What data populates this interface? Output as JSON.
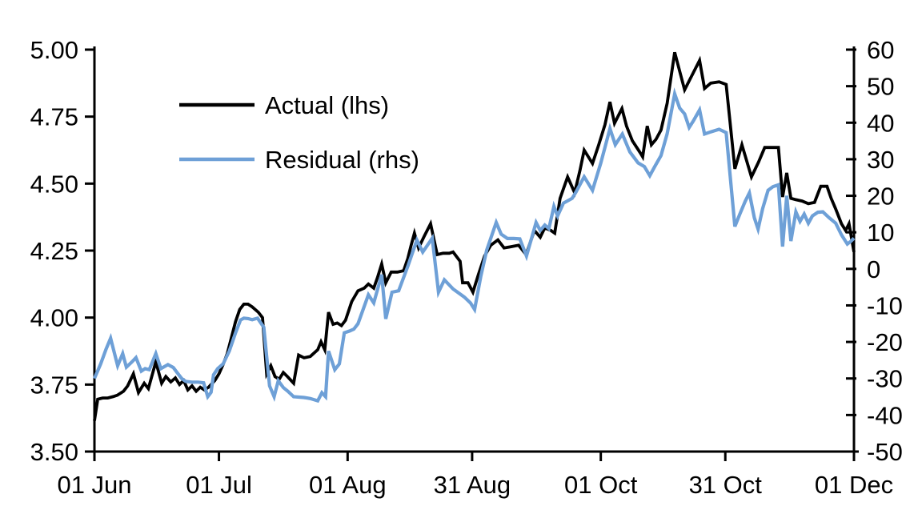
{
  "chart_data": {
    "type": "line",
    "title": "",
    "x_unit": "days since 01 Jun",
    "grid": "off",
    "legend_position": "upper-left-inside",
    "x_ticks": [
      {
        "day": 0,
        "label": "01 Jun"
      },
      {
        "day": 30,
        "label": "01 Jul"
      },
      {
        "day": 61,
        "label": "01 Aug"
      },
      {
        "day": 91,
        "label": "31 Aug"
      },
      {
        "day": 122,
        "label": "01 Oct"
      },
      {
        "day": 152,
        "label": "31 Oct"
      },
      {
        "day": 183,
        "label": "01 Dec"
      }
    ],
    "left_axis": {
      "min": 3.5,
      "max": 5.0,
      "tick_step": 0.25,
      "tick_labels": [
        "5.00",
        "4.75",
        "4.50",
        "4.25",
        "4.00",
        "3.75",
        "3.50"
      ]
    },
    "right_axis": {
      "min": -50,
      "max": 60,
      "tick_step": 10,
      "tick_labels": [
        "60",
        "50",
        "40",
        "30",
        "20",
        "10",
        "0",
        "-10",
        "-20",
        "-30",
        "-40",
        "-50"
      ]
    },
    "series": [
      {
        "name": "Actual (lhs)",
        "axis": "left",
        "color": "#000000",
        "stroke_width": 3.8,
        "points": [
          [
            0,
            3.615
          ],
          [
            0.8,
            3.695
          ],
          [
            2,
            3.7
          ],
          [
            3.2,
            3.7
          ],
          [
            4.5,
            3.705
          ],
          [
            5.5,
            3.71
          ],
          [
            7,
            3.725
          ],
          [
            8,
            3.745
          ],
          [
            9.4,
            3.79
          ],
          [
            10.6,
            3.72
          ],
          [
            12,
            3.755
          ],
          [
            13,
            3.735
          ],
          [
            14.8,
            3.835
          ],
          [
            16.2,
            3.755
          ],
          [
            17.2,
            3.78
          ],
          [
            18.4,
            3.76
          ],
          [
            19.5,
            3.775
          ],
          [
            20.5,
            3.75
          ],
          [
            21.5,
            3.765
          ],
          [
            22.5,
            3.73
          ],
          [
            23.5,
            3.745
          ],
          [
            24.5,
            3.725
          ],
          [
            25.5,
            3.74
          ],
          [
            26.5,
            3.73
          ],
          [
            27.5,
            3.74
          ],
          [
            29,
            3.765
          ],
          [
            30,
            3.79
          ],
          [
            31,
            3.825
          ],
          [
            32,
            3.865
          ],
          [
            33,
            3.925
          ],
          [
            34,
            3.985
          ],
          [
            35,
            4.03
          ],
          [
            36,
            4.05
          ],
          [
            37,
            4.05
          ],
          [
            38,
            4.04
          ],
          [
            39.5,
            4.02
          ],
          [
            40.5,
            4.0
          ],
          [
            41.5,
            3.79
          ],
          [
            42.5,
            3.82
          ],
          [
            43.5,
            3.78
          ],
          [
            44.5,
            3.77
          ],
          [
            45.5,
            3.795
          ],
          [
            46.5,
            3.78
          ],
          [
            48,
            3.755
          ],
          [
            49.2,
            3.86
          ],
          [
            50.5,
            3.85
          ],
          [
            52,
            3.855
          ],
          [
            53.8,
            3.88
          ],
          [
            54.6,
            3.91
          ],
          [
            55.5,
            3.88
          ],
          [
            56.4,
            4.02
          ],
          [
            57.5,
            3.975
          ],
          [
            58.5,
            3.98
          ],
          [
            59.5,
            3.97
          ],
          [
            60.5,
            3.99
          ],
          [
            62,
            4.06
          ],
          [
            63.5,
            4.1
          ],
          [
            65,
            4.11
          ],
          [
            66,
            4.125
          ],
          [
            67.3,
            4.11
          ],
          [
            68.2,
            4.15
          ],
          [
            69.2,
            4.2
          ],
          [
            70.2,
            4.13
          ],
          [
            71.5,
            4.17
          ],
          [
            73,
            4.17
          ],
          [
            74.5,
            4.175
          ],
          [
            75.5,
            4.22
          ],
          [
            76.3,
            4.27
          ],
          [
            77.1,
            4.315
          ],
          [
            78.1,
            4.26
          ],
          [
            79.5,
            4.305
          ],
          [
            81,
            4.35
          ],
          [
            82.6,
            4.235
          ],
          [
            84,
            4.24
          ],
          [
            85.5,
            4.24
          ],
          [
            86.4,
            4.245
          ],
          [
            88.1,
            4.21
          ],
          [
            88.7,
            4.13
          ],
          [
            90,
            4.13
          ],
          [
            91.2,
            4.095
          ],
          [
            92.5,
            4.16
          ],
          [
            94,
            4.23
          ],
          [
            95.5,
            4.27
          ],
          [
            97.2,
            4.29
          ],
          [
            98.7,
            4.26
          ],
          [
            100.5,
            4.265
          ],
          [
            102.2,
            4.27
          ],
          [
            104,
            4.235
          ],
          [
            106,
            4.325
          ],
          [
            107.4,
            4.3
          ],
          [
            108.5,
            4.335
          ],
          [
            110,
            4.325
          ],
          [
            110.9,
            4.315
          ],
          [
            112.2,
            4.445
          ],
          [
            114,
            4.525
          ],
          [
            115.7,
            4.466
          ],
          [
            117,
            4.55
          ],
          [
            118,
            4.625
          ],
          [
            120,
            4.575
          ],
          [
            121.5,
            4.645
          ],
          [
            123,
            4.72
          ],
          [
            124.2,
            4.805
          ],
          [
            125.3,
            4.725
          ],
          [
            127.1,
            4.78
          ],
          [
            128.2,
            4.715
          ],
          [
            129.6,
            4.66
          ],
          [
            131.5,
            4.615
          ],
          [
            132.1,
            4.6
          ],
          [
            133.2,
            4.715
          ],
          [
            134.2,
            4.645
          ],
          [
            135.3,
            4.665
          ],
          [
            136.5,
            4.7
          ],
          [
            138,
            4.8
          ],
          [
            139.8,
            4.99
          ],
          [
            141,
            4.92
          ],
          [
            142.2,
            4.85
          ],
          [
            143.5,
            4.89
          ],
          [
            145.8,
            4.96
          ],
          [
            147,
            4.855
          ],
          [
            148.5,
            4.875
          ],
          [
            150.5,
            4.88
          ],
          [
            152.2,
            4.87
          ],
          [
            153.2,
            4.72
          ],
          [
            154.3,
            4.555
          ],
          [
            156,
            4.645
          ],
          [
            158.3,
            4.525
          ],
          [
            160,
            4.58
          ],
          [
            161.5,
            4.635
          ],
          [
            163,
            4.635
          ],
          [
            164.8,
            4.635
          ],
          [
            165.8,
            4.45
          ],
          [
            166.8,
            4.54
          ],
          [
            167.8,
            4.445
          ],
          [
            169,
            4.44
          ],
          [
            170.5,
            4.435
          ],
          [
            172,
            4.425
          ],
          [
            173.5,
            4.43
          ],
          [
            175,
            4.49
          ],
          [
            176.5,
            4.49
          ],
          [
            177.5,
            4.445
          ],
          [
            178.6,
            4.405
          ],
          [
            180,
            4.35
          ],
          [
            181,
            4.325
          ],
          [
            181.8,
            4.35
          ],
          [
            183,
            4.245
          ]
        ]
      },
      {
        "name": "Residual (rhs)",
        "axis": "right",
        "color": "#6ea0d7",
        "stroke_width": 4.2,
        "points": [
          [
            0,
            -30
          ],
          [
            1.5,
            -26
          ],
          [
            2.8,
            -22
          ],
          [
            3.9,
            -19
          ],
          [
            5.6,
            -26.5
          ],
          [
            6.8,
            -23.2
          ],
          [
            7.7,
            -26.9
          ],
          [
            9,
            -25.5
          ],
          [
            10,
            -24.3
          ],
          [
            11.3,
            -28
          ],
          [
            12.2,
            -27.3
          ],
          [
            13.2,
            -27.6
          ],
          [
            14.8,
            -23.2
          ],
          [
            16,
            -27.3
          ],
          [
            17.7,
            -26.2
          ],
          [
            19,
            -27
          ],
          [
            20,
            -28.5
          ],
          [
            21,
            -30
          ],
          [
            22,
            -30.8
          ],
          [
            23.5,
            -31
          ],
          [
            25,
            -31
          ],
          [
            26.3,
            -31.2
          ],
          [
            27.3,
            -35
          ],
          [
            28.1,
            -33.8
          ],
          [
            28.7,
            -29
          ],
          [
            29.7,
            -27.3
          ],
          [
            31,
            -26
          ],
          [
            32.5,
            -22.5
          ],
          [
            34,
            -17.5
          ],
          [
            35.2,
            -14
          ],
          [
            36,
            -13.5
          ],
          [
            37,
            -13.6
          ],
          [
            38,
            -13.9
          ],
          [
            39.3,
            -13.5
          ],
          [
            40.8,
            -16
          ],
          [
            41.5,
            -24
          ],
          [
            42.2,
            -32
          ],
          [
            43.3,
            -35
          ],
          [
            44.3,
            -30.6
          ],
          [
            45.5,
            -32.5
          ],
          [
            46.6,
            -33.5
          ],
          [
            48,
            -35
          ],
          [
            50.5,
            -35.2
          ],
          [
            52,
            -35.5
          ],
          [
            53.8,
            -36.1
          ],
          [
            54.8,
            -33.9
          ],
          [
            55.7,
            -35
          ],
          [
            56.4,
            -22.5
          ],
          [
            57.9,
            -27.6
          ],
          [
            59,
            -26
          ],
          [
            60.2,
            -17.5
          ],
          [
            61.5,
            -17
          ],
          [
            62.5,
            -16.5
          ],
          [
            63.5,
            -15
          ],
          [
            66,
            -7.1
          ],
          [
            67.3,
            -9.3
          ],
          [
            69.2,
            -1.6
          ],
          [
            70.2,
            -13.7
          ],
          [
            71.7,
            -6.4
          ],
          [
            73.3,
            -6
          ],
          [
            75.6,
            1
          ],
          [
            77.7,
            7.9
          ],
          [
            79.1,
            4.6
          ],
          [
            81.4,
            8.4
          ],
          [
            82.9,
            -6.4
          ],
          [
            84.3,
            -3
          ],
          [
            86.4,
            -5.5
          ],
          [
            89.1,
            -7.7
          ],
          [
            90.6,
            -9.3
          ],
          [
            91.6,
            -11.1
          ],
          [
            93.1,
            -2
          ],
          [
            94.5,
            5.1
          ],
          [
            96.8,
            12.7
          ],
          [
            98,
            9.5
          ],
          [
            99.5,
            8.3
          ],
          [
            101,
            8.3
          ],
          [
            102.5,
            8.2
          ],
          [
            104.1,
            3.5
          ],
          [
            106.4,
            12.7
          ],
          [
            107.4,
            10.5
          ],
          [
            108.5,
            12
          ],
          [
            109.5,
            11
          ],
          [
            110.7,
            17.1
          ],
          [
            111.6,
            14.5
          ],
          [
            113,
            18
          ],
          [
            115.1,
            19.3
          ],
          [
            116,
            21
          ],
          [
            118,
            25.2
          ],
          [
            120,
            21.5
          ],
          [
            122,
            29
          ],
          [
            124.2,
            38.4
          ],
          [
            125.5,
            34
          ],
          [
            127.2,
            36.9
          ],
          [
            129,
            32
          ],
          [
            131,
            29
          ],
          [
            132.5,
            28
          ],
          [
            133.8,
            25.5
          ],
          [
            135,
            28
          ],
          [
            136.5,
            31
          ],
          [
            138,
            37
          ],
          [
            139.8,
            47.9
          ],
          [
            141,
            44
          ],
          [
            142.2,
            42.4
          ],
          [
            143.3,
            38.7
          ],
          [
            144.3,
            40.5
          ],
          [
            145.8,
            43.5
          ],
          [
            147,
            36.9
          ],
          [
            148.5,
            37.5
          ],
          [
            150.5,
            38.2
          ],
          [
            152.2,
            37.3
          ],
          [
            153.2,
            25
          ],
          [
            154.3,
            11.6
          ],
          [
            155.5,
            15
          ],
          [
            156.8,
            18.5
          ],
          [
            157.8,
            20.8
          ],
          [
            159,
            14
          ],
          [
            159.9,
            10.9
          ],
          [
            161,
            16.5
          ],
          [
            162.3,
            21.5
          ],
          [
            163.5,
            22.5
          ],
          [
            164.8,
            23
          ],
          [
            165.8,
            6.1
          ],
          [
            166.8,
            20
          ],
          [
            167.8,
            7.6
          ],
          [
            169,
            15.6
          ],
          [
            170,
            13
          ],
          [
            171,
            15
          ],
          [
            172,
            12.5
          ],
          [
            173,
            14.5
          ],
          [
            174.3,
            15.5
          ],
          [
            175.5,
            15.6
          ],
          [
            177,
            14
          ],
          [
            178.6,
            12.5
          ],
          [
            180,
            9.3
          ],
          [
            181.4,
            6.8
          ],
          [
            182.2,
            7.5
          ],
          [
            183,
            8.4
          ]
        ]
      }
    ]
  }
}
